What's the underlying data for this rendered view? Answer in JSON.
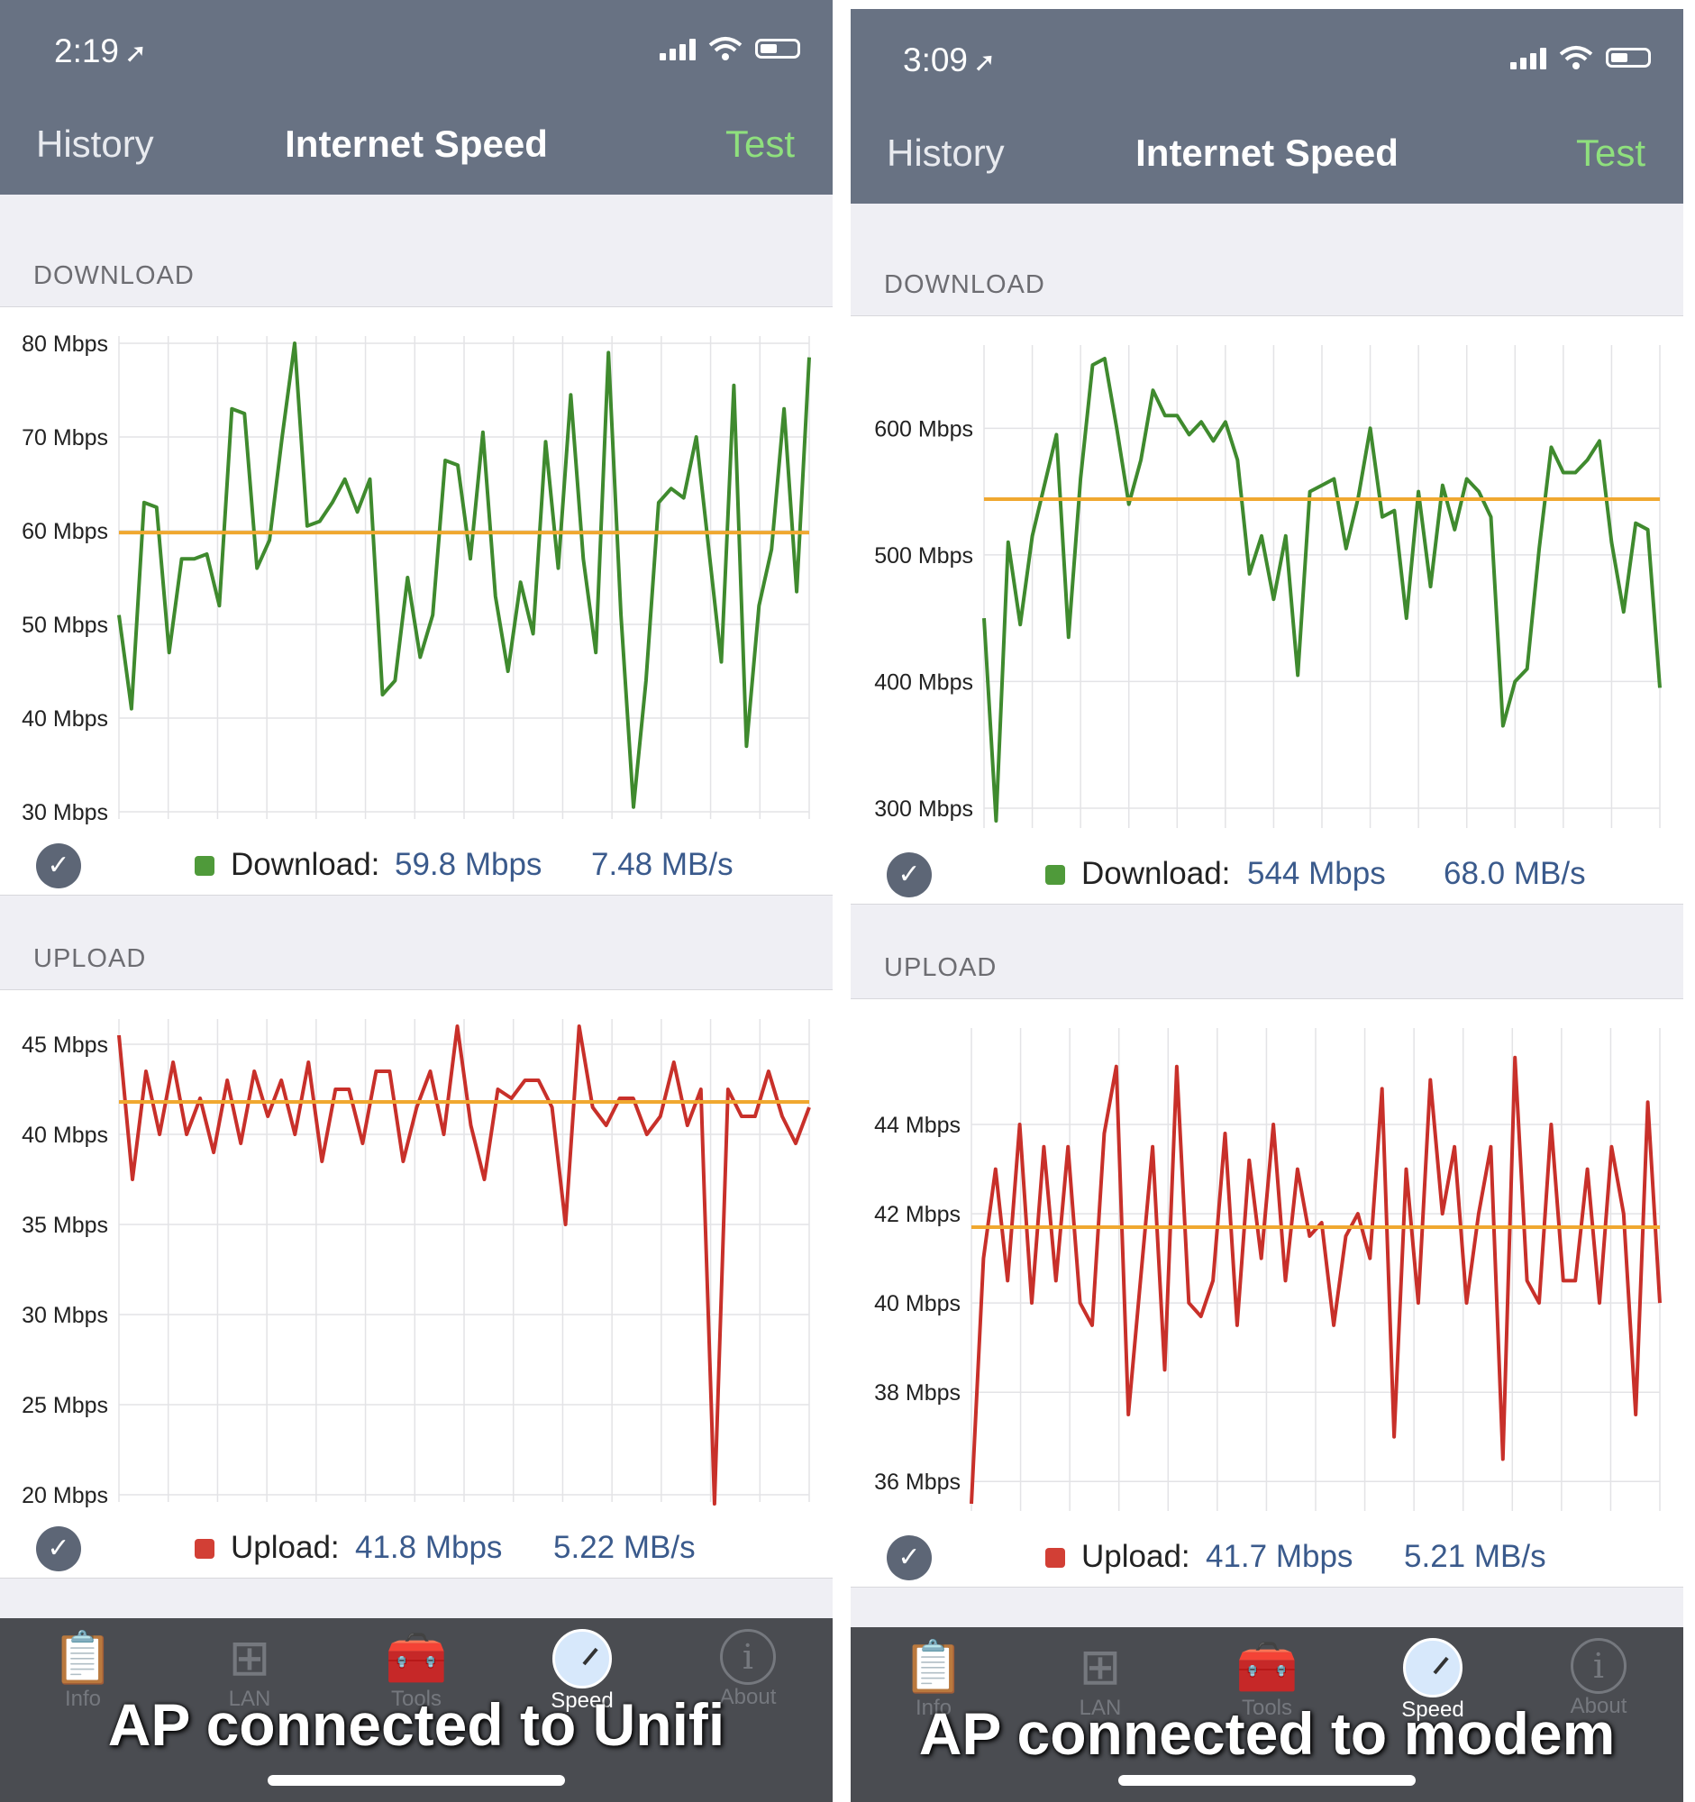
{
  "panels": [
    {
      "time": "2:19",
      "nav": {
        "left": "History",
        "title": "Internet Speed",
        "right": "Test"
      },
      "download": {
        "section_label": "DOWNLOAD",
        "legend_label": "Download:",
        "speed": "59.8 Mbps",
        "rate": "7.48 MB/s",
        "chart_data": {
          "type": "line",
          "yticks": [
            "80 Mbps",
            "70 Mbps",
            "60 Mbps",
            "50 Mbps",
            "40 Mbps",
            "30 Mbps"
          ],
          "ylim": [
            30,
            80
          ],
          "average": 59.8,
          "series_color": "#3f8a2e",
          "average_color": "#f0a830",
          "values": [
            51,
            41,
            63,
            62.5,
            47,
            57,
            57,
            57.5,
            52,
            73,
            72.5,
            56,
            59,
            70,
            80,
            60.5,
            61,
            63,
            65.5,
            62,
            65.5,
            42.5,
            44,
            55,
            46.5,
            51,
            67.5,
            67,
            57,
            70.5,
            53,
            45,
            54.5,
            49,
            69.5,
            56,
            74.5,
            57,
            47,
            79,
            51,
            30.5,
            44,
            63,
            64.5,
            63.5,
            70,
            58,
            46,
            75.5,
            37,
            52,
            58,
            73,
            53.5,
            78.5
          ]
        }
      },
      "upload": {
        "section_label": "UPLOAD",
        "legend_label": "Upload:",
        "speed": "41.8 Mbps",
        "rate": "5.22 MB/s",
        "chart_data": {
          "type": "line",
          "yticks": [
            "45 Mbps",
            "40 Mbps",
            "35 Mbps",
            "30 Mbps",
            "25 Mbps",
            "20 Mbps"
          ],
          "ylim": [
            20,
            46
          ],
          "average": 41.8,
          "series_color": "#c8302a",
          "average_color": "#f0a830",
          "values": [
            45.5,
            37.5,
            43.5,
            40,
            44,
            40,
            42,
            39,
            43,
            39.5,
            43.5,
            41,
            43,
            40,
            44,
            38.5,
            42.5,
            42.5,
            39.5,
            43.5,
            43.5,
            38.5,
            41.5,
            43.5,
            40,
            46,
            40.5,
            37.5,
            42.5,
            42,
            43,
            43,
            41.5,
            35,
            46,
            41.5,
            40.5,
            42,
            42,
            40,
            41,
            44,
            40.5,
            42.5,
            19.5,
            42.5,
            41,
            41,
            43.5,
            41,
            39.5,
            41.5
          ]
        }
      },
      "tabs": [
        {
          "label": "Info",
          "icon": "clipboard-icon"
        },
        {
          "label": "LAN",
          "icon": "network-icon"
        },
        {
          "label": "Tools",
          "icon": "toolbox-icon"
        },
        {
          "label": "Speed",
          "icon": "speedometer-icon"
        },
        {
          "label": "About",
          "icon": "info-icon"
        }
      ],
      "caption": "AP connected to Unifi"
    },
    {
      "time": "3:09",
      "nav": {
        "left": "History",
        "title": "Internet Speed",
        "right": "Test"
      },
      "download": {
        "section_label": "DOWNLOAD",
        "legend_label": "Download:",
        "speed": "544 Mbps",
        "rate": "68.0 MB/s",
        "chart_data": {
          "type": "line",
          "yticks": [
            "600 Mbps",
            "500 Mbps",
            "400 Mbps",
            "300 Mbps"
          ],
          "ylim": [
            290,
            660
          ],
          "average": 544,
          "series_color": "#3f8a2e",
          "average_color": "#f0a830",
          "values": [
            450,
            290,
            510,
            445,
            515,
            555,
            595,
            435,
            560,
            650,
            655,
            600,
            540,
            575,
            630,
            610,
            610,
            595,
            605,
            590,
            605,
            575,
            485,
            515,
            465,
            515,
            405,
            550,
            555,
            560,
            505,
            545,
            600,
            530,
            535,
            450,
            550,
            475,
            555,
            520,
            560,
            550,
            530,
            365,
            400,
            410,
            505,
            585,
            565,
            565,
            575,
            590,
            510,
            455,
            525,
            520,
            395
          ]
        }
      },
      "upload": {
        "section_label": "UPLOAD",
        "legend_label": "Upload:",
        "speed": "41.7 Mbps",
        "rate": "5.21 MB/s",
        "chart_data": {
          "type": "line",
          "yticks": [
            "44 Mbps",
            "42 Mbps",
            "40 Mbps",
            "38 Mbps",
            "36 Mbps"
          ],
          "ylim": [
            35.5,
            46
          ],
          "average": 41.7,
          "series_color": "#c8302a",
          "average_color": "#f0a830",
          "values": [
            35.5,
            41,
            43,
            40.5,
            44,
            40,
            43.5,
            40.5,
            43.5,
            40,
            39.5,
            43.8,
            45.3,
            37.5,
            40.5,
            43.5,
            38.5,
            45.3,
            40,
            39.7,
            40.5,
            43.8,
            39.5,
            43.2,
            41,
            44,
            40.5,
            43,
            41.5,
            41.8,
            39.5,
            41.5,
            42,
            41,
            44.8,
            37,
            43,
            40,
            45,
            42,
            43.5,
            40,
            42,
            43.5,
            36.5,
            45.5,
            40.5,
            40,
            44,
            40.5,
            40.5,
            43,
            40,
            43.5,
            42,
            37.5,
            44.5,
            40
          ]
        }
      },
      "tabs": [
        {
          "label": "Info",
          "icon": "clipboard-icon"
        },
        {
          "label": "LAN",
          "icon": "network-icon"
        },
        {
          "label": "Tools",
          "icon": "toolbox-icon"
        },
        {
          "label": "Speed",
          "icon": "speedometer-icon"
        },
        {
          "label": "About",
          "icon": "info-icon"
        }
      ],
      "caption": "AP connected to modem"
    }
  ]
}
